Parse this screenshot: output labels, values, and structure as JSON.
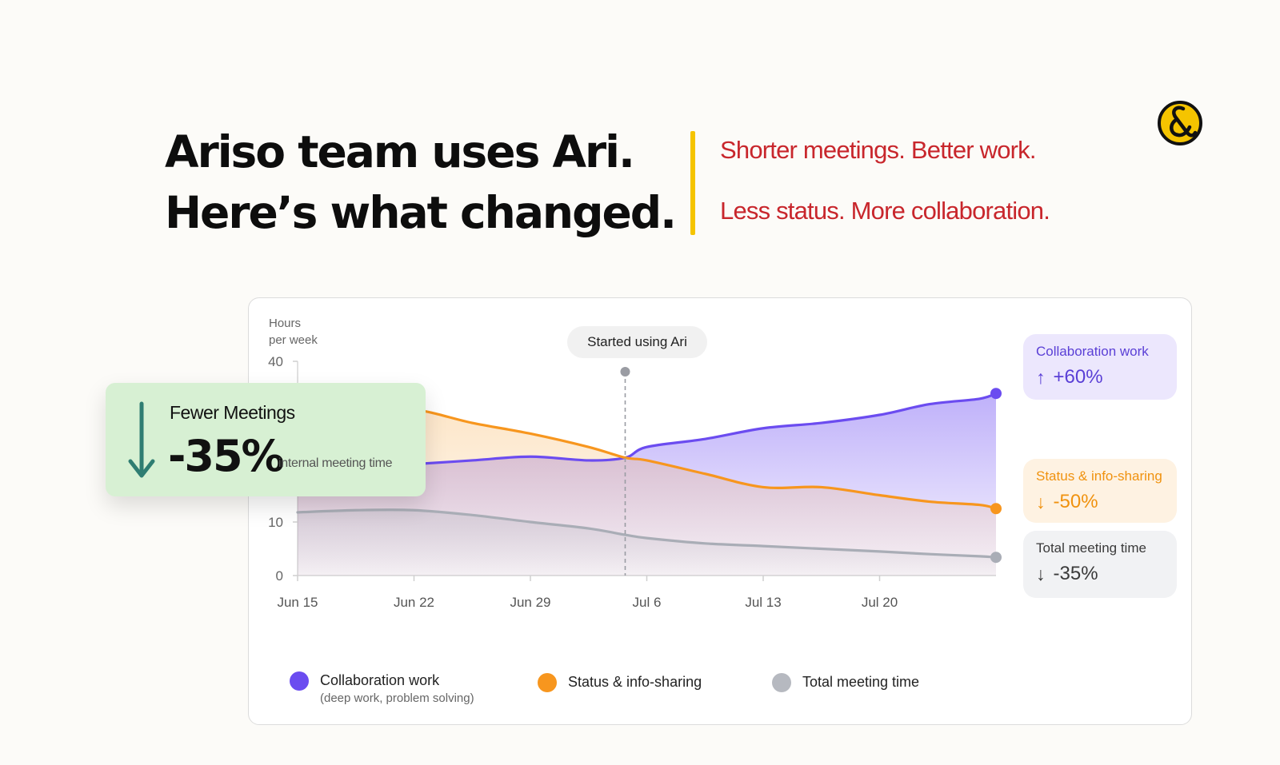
{
  "headline": {
    "line1": "Ariso team uses Ari.",
    "line2": "Here’s what changed."
  },
  "taglines": [
    "Shorter meetings. Better work.",
    "Less status. More collaboration."
  ],
  "colors": {
    "collab": "#6b4cf0",
    "status": "#f7961e",
    "meeting": "#a9adb6",
    "tagline": "#c8262c",
    "accent": "#f5c400",
    "callout_bg": "#d7f0d3",
    "callout_arrow": "#2f7d72"
  },
  "logo": {
    "icon": "ampersand-logo-icon"
  },
  "chart_data": {
    "type": "area",
    "ylabel": [
      "Hours",
      "per week"
    ],
    "ylim": [
      0,
      40
    ],
    "y_ticks": [
      0,
      10,
      40
    ],
    "x_ticks": [
      "Jun 15",
      "Jun 22",
      "Jun 29",
      "Jul 6",
      "Jul 13",
      "Jul 20"
    ],
    "x": [
      0,
      3.5,
      7,
      10.5,
      14,
      17.5,
      19.7,
      21,
      24.5,
      28,
      31.5,
      35,
      38,
      41,
      42
    ],
    "series": [
      {
        "name": "Collaboration work",
        "note": "(deep work, problem solving)",
        "values": [
          20.0,
          20.3,
          20.8,
          21.5,
          22.2,
          21.5,
          22.0,
          24.0,
          25.5,
          27.5,
          28.5,
          30.0,
          32.0,
          33.0,
          34.0
        ]
      },
      {
        "name": "Status & info-sharing",
        "values": [
          31.0,
          31.0,
          31.0,
          28.5,
          26.5,
          24.0,
          22.0,
          21.5,
          19.0,
          16.5,
          16.5,
          15.0,
          13.8,
          13.2,
          12.5
        ]
      },
      {
        "name": "Total meeting time",
        "values": [
          11.8,
          12.2,
          12.2,
          11.3,
          10.0,
          8.8,
          7.6,
          7.0,
          6.0,
          5.5,
          5.0,
          4.5,
          4.0,
          3.6,
          3.4
        ]
      }
    ],
    "annotation": {
      "label": "Started using Ari",
      "x_day": 19.7
    },
    "end_labels": [
      {
        "label": "Collaboration work",
        "value": "+60%",
        "direction": "up"
      },
      {
        "label": "Status & info-sharing",
        "value": "-50%",
        "direction": "down"
      },
      {
        "label": "Total meeting time",
        "value": "-35%",
        "direction": "down"
      }
    ],
    "callout": {
      "title": "Fewer Meetings",
      "value": "-35%",
      "note": "internal meeting time"
    },
    "legend": [
      {
        "label": "Collaboration work",
        "sublabel": "(deep work, problem solving)"
      },
      {
        "label": "Status & info-sharing"
      },
      {
        "label": "Total meeting time"
      }
    ]
  }
}
